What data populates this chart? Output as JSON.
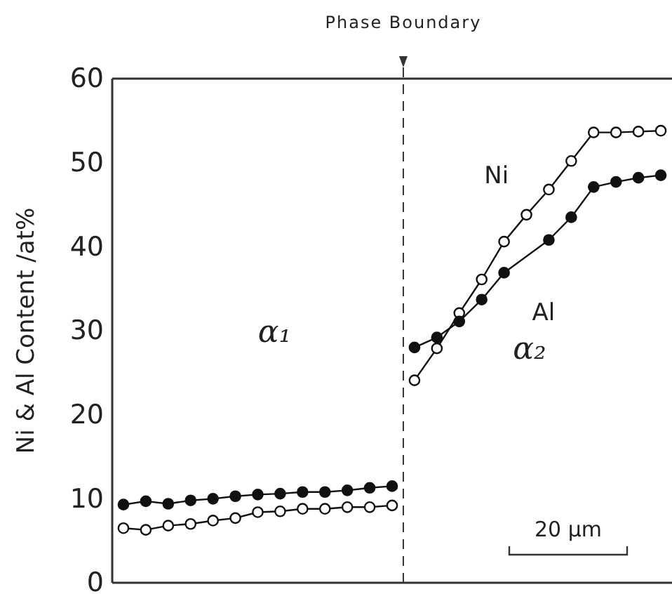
{
  "chart_data": {
    "type": "line",
    "ylabel": "Ni & Al Content /at%",
    "categories": [
      null,
      null,
      null,
      null,
      null,
      null,
      null,
      null,
      null,
      null,
      null,
      null,
      null,
      null,
      null,
      null,
      null,
      null,
      null,
      null,
      null,
      null,
      null,
      null,
      null
    ],
    "ylim": [
      0,
      60
    ],
    "yticks": [
      0,
      10,
      20,
      30,
      40,
      50,
      60
    ],
    "tick_labels": "y",
    "grid": false,
    "marker": "circle",
    "line_style": "solid",
    "series": [
      {
        "color": "#111111",
        "values": [
          6.5,
          6.3,
          6.8,
          7.0,
          7.4,
          7.7,
          8.4,
          8.5,
          8.8,
          8.8,
          9.0,
          9.0,
          9.2,
          null,
          null,
          null,
          null,
          null,
          null,
          null,
          null,
          null,
          null,
          null,
          null
        ]
      },
      {
        "name": "Ni",
        "color": "#111111",
        "values": [
          null,
          null,
          null,
          null,
          null,
          null,
          null,
          null,
          null,
          null,
          null,
          null,
          null,
          24.1,
          27.9,
          32.1,
          36.1,
          40.6,
          43.8,
          46.8,
          50.2,
          53.6,
          53.6,
          53.7,
          53.8
        ]
      },
      {
        "color": "#111111",
        "values": [
          9.3,
          9.7,
          9.4,
          9.8,
          10.0,
          10.3,
          10.5,
          10.6,
          10.8,
          10.8,
          11.0,
          11.3,
          11.5,
          null,
          null,
          null,
          null,
          null,
          null,
          null,
          null,
          null,
          null,
          null,
          null
        ]
      },
      {
        "name": "Al",
        "color": "#111111",
        "values": [
          null,
          null,
          null,
          null,
          null,
          null,
          null,
          null,
          null,
          null,
          null,
          null,
          null,
          28.0,
          29.2,
          31.1,
          33.7,
          36.9,
          null,
          40.8,
          43.5,
          47.1,
          47.7,
          48.2,
          48.5
        ]
      }
    ],
    "annotations": [
      "Phase Boundary",
      "α₁",
      "α₂",
      "20 µm"
    ]
  }
}
